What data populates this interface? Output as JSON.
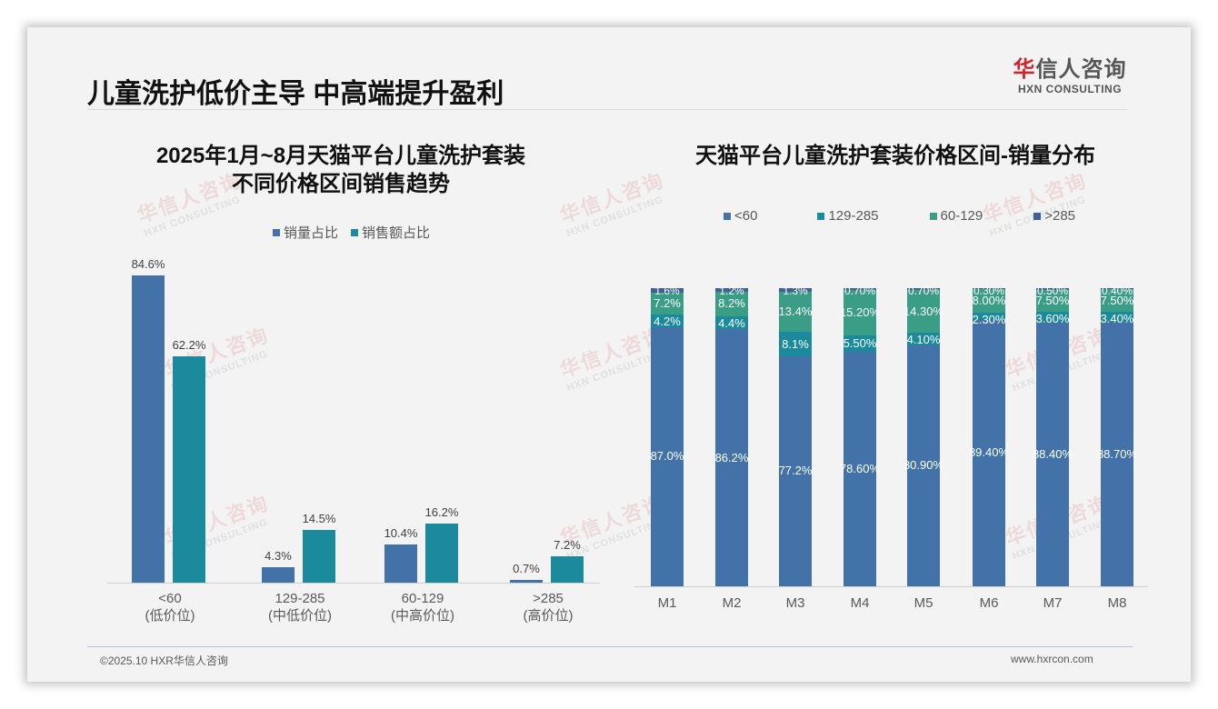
{
  "header": {
    "title": "儿童洗护低价主导 中高端提升盈利",
    "logo_cn_red": "华",
    "logo_cn_rest": "信人咨询",
    "logo_en": "HXN CONSULTING"
  },
  "watermark": {
    "cn": "华信人咨询",
    "en": "HXN CONSULTING"
  },
  "footer": {
    "copyright": "©2025.10 HXR华信人咨询",
    "website": "www.hxrcon.com"
  },
  "colors": {
    "blue": "#4272a8",
    "teal": "#1a8a9c",
    "green": "#3a9d86",
    "navy": "#3f5f9a"
  },
  "left_chart": {
    "title_line1": "2025年1月~8月天猫平台儿童洗护套装",
    "title_line2": "不同价格区间销售趋势",
    "legend": [
      "销量占比",
      "销售额占比"
    ],
    "categories": [
      {
        "range": "<60",
        "tier": "(低价位)",
        "volume": 84.6,
        "volume_label": "84.6%",
        "sales": 62.2,
        "sales_label": "62.2%"
      },
      {
        "range": "129-285",
        "tier": "(中低价位)",
        "volume": 4.3,
        "volume_label": "4.3%",
        "sales": 14.5,
        "sales_label": "14.5%"
      },
      {
        "range": "60-129",
        "tier": "(中高价位)",
        "volume": 10.4,
        "volume_label": "10.4%",
        "sales": 16.2,
        "sales_label": "16.2%"
      },
      {
        "range": ">285",
        "tier": "(高价位)",
        "volume": 0.7,
        "volume_label": "0.7%",
        "sales": 7.2,
        "sales_label": "7.2%"
      }
    ]
  },
  "right_chart": {
    "title": "天猫平台儿童洗护套装价格区间-销量分布",
    "legend": [
      "<60",
      "129-285",
      "60-129",
      ">285"
    ],
    "months": [
      {
        "m": "M1",
        "v": [
          87.0,
          4.2,
          7.2,
          1.6
        ],
        "l": [
          "87.0%",
          "4.2%",
          "7.2%",
          "1.6%"
        ]
      },
      {
        "m": "M2",
        "v": [
          86.2,
          4.4,
          8.2,
          1.2
        ],
        "l": [
          "86.2%",
          "4.4%",
          "8.2%",
          "1.2%"
        ]
      },
      {
        "m": "M3",
        "v": [
          77.2,
          8.1,
          13.4,
          1.3
        ],
        "l": [
          "77.2%",
          "8.1%",
          "13.4%",
          "1.3%"
        ]
      },
      {
        "m": "M4",
        "v": [
          78.6,
          5.5,
          15.2,
          0.7
        ],
        "l": [
          "78.60%",
          "5.50%",
          "15.20%",
          "0.70%"
        ]
      },
      {
        "m": "M5",
        "v": [
          80.9,
          4.1,
          14.3,
          0.7
        ],
        "l": [
          "80.90%",
          "4.10%",
          "14.30%",
          "0.70%"
        ]
      },
      {
        "m": "M6",
        "v": [
          89.4,
          2.3,
          8.0,
          0.3
        ],
        "l": [
          "89.40%",
          "2.30%",
          "8.00%",
          "0.30%"
        ]
      },
      {
        "m": "M7",
        "v": [
          88.4,
          3.6,
          7.5,
          0.5
        ],
        "l": [
          "88.40%",
          "3.60%",
          "7.50%",
          "0.50%"
        ]
      },
      {
        "m": "M8",
        "v": [
          88.7,
          3.4,
          7.5,
          0.4
        ],
        "l": [
          "88.70%",
          "3.40%",
          "7.50%",
          "0.40%"
        ]
      }
    ]
  },
  "chart_data": [
    {
      "type": "bar",
      "title": "2025年1月~8月天猫平台儿童洗护套装不同价格区间销售趋势",
      "categories": [
        "<60 (低价位)",
        "129-285 (中低价位)",
        "60-129 (中高价位)",
        ">285 (高价位)"
      ],
      "series": [
        {
          "name": "销量占比",
          "values": [
            84.6,
            4.3,
            10.4,
            0.7
          ]
        },
        {
          "name": "销售额占比",
          "values": [
            62.2,
            14.5,
            16.2,
            7.2
          ]
        }
      ],
      "xlabel": "",
      "ylabel": "",
      "unit": "%",
      "legend_position": "top",
      "grid": false
    },
    {
      "type": "bar",
      "stacked": true,
      "title": "天猫平台儿童洗护套装价格区间-销量分布",
      "categories": [
        "M1",
        "M2",
        "M3",
        "M4",
        "M5",
        "M6",
        "M7",
        "M8"
      ],
      "series": [
        {
          "name": "<60",
          "values": [
            87.0,
            86.2,
            77.2,
            78.6,
            80.9,
            89.4,
            88.4,
            88.7
          ]
        },
        {
          "name": "129-285",
          "values": [
            4.2,
            4.4,
            8.1,
            5.5,
            4.1,
            2.3,
            3.6,
            3.4
          ]
        },
        {
          "name": "60-129",
          "values": [
            7.2,
            8.2,
            13.4,
            15.2,
            14.3,
            8.0,
            7.5,
            7.5
          ]
        },
        {
          "name": ">285",
          "values": [
            1.6,
            1.2,
            1.3,
            0.7,
            0.7,
            0.3,
            0.5,
            0.4
          ]
        }
      ],
      "xlabel": "",
      "ylabel": "",
      "unit": "%",
      "ylim": [
        0,
        100
      ],
      "legend_position": "top",
      "grid": false
    }
  ]
}
